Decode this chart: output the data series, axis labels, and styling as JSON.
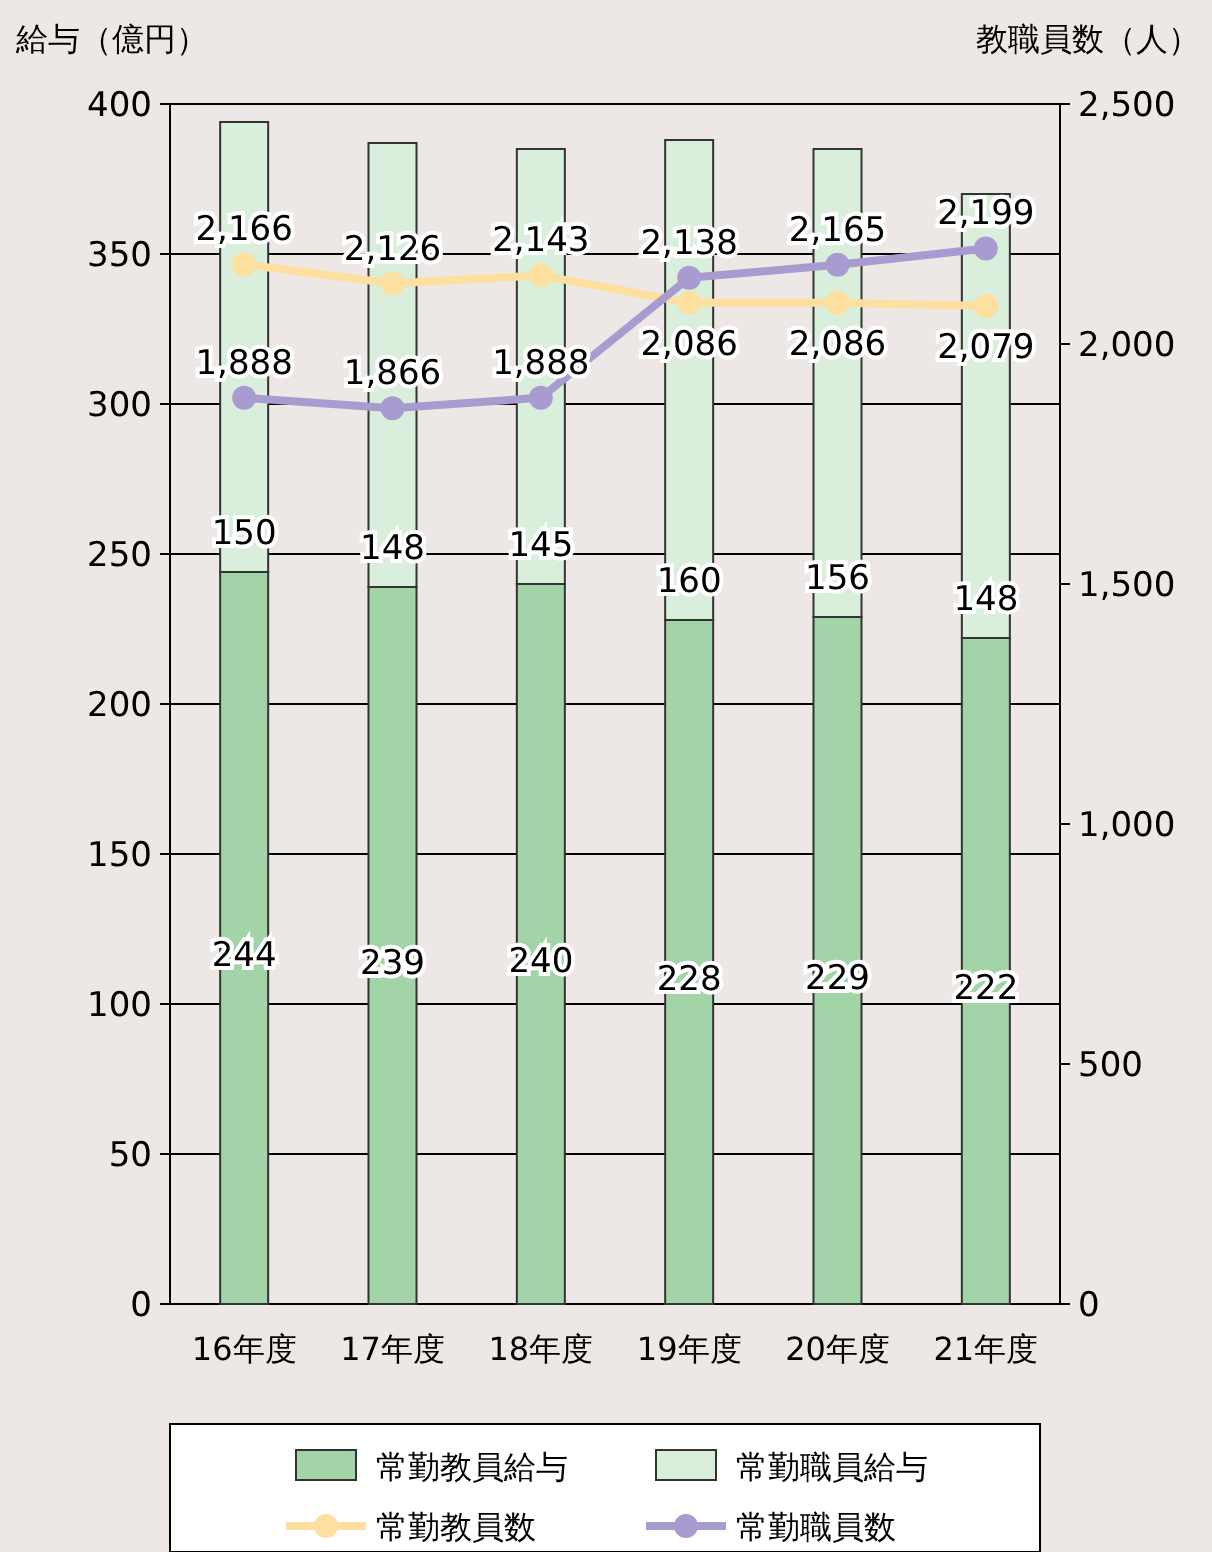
{
  "chart_data": {
    "type": "bar",
    "stacked": true,
    "ylabel": "給与（億円）",
    "y2label": "教職員数（人）",
    "categories": [
      "16年度",
      "17年度",
      "18年度",
      "19年度",
      "20年度",
      "21年度"
    ],
    "series": [
      {
        "name": "常勤教員給与",
        "color": "#a3d4a8",
        "values": [
          244,
          239,
          240,
          228,
          229,
          222
        ]
      },
      {
        "name": "常勤職員給与",
        "color": "#d9efdb",
        "values": [
          150,
          148,
          145,
          160,
          156,
          148
        ]
      },
      {
        "name": "常勤教員数",
        "type": "line",
        "axis": "y2",
        "color": "#fddfa0",
        "values": [
          2166,
          2126,
          2143,
          2086,
          2086,
          2079
        ],
        "value_labels": [
          "2,166",
          "2,126",
          "2,143",
          "2,086",
          "2,086",
          "2,079"
        ]
      },
      {
        "name": "常勤職員数",
        "type": "line",
        "axis": "y2",
        "color": "#a79bd0",
        "values": [
          1888,
          1866,
          1888,
          2138,
          2165,
          2199
        ],
        "value_labels": [
          "1,888",
          "1,866",
          "1,888",
          "2,138",
          "2,165",
          "2,199"
        ]
      }
    ],
    "data_labels": true,
    "marker": "circle",
    "line_style": "solid",
    "ylim": [
      0,
      400
    ],
    "yticks": [
      0,
      50,
      100,
      150,
      200,
      250,
      300,
      350,
      400
    ],
    "y2lim": [
      0,
      2500
    ],
    "y2ticks": [
      0,
      {
        "value": 500,
        "label": "500"
      },
      {
        "value": 1000,
        "label": "1,000"
      },
      {
        "value": 1500,
        "label": "1,500"
      },
      {
        "value": 2000,
        "label": "2,000"
      },
      {
        "value": 2500,
        "label": "2,500"
      }
    ],
    "grid": "y",
    "legend": "bottom"
  }
}
